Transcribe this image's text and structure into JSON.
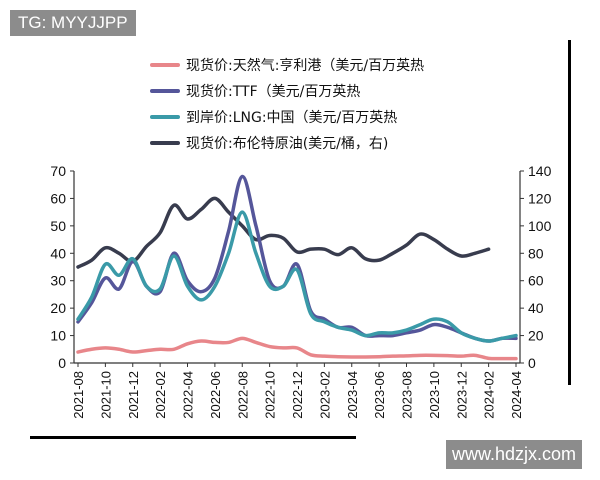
{
  "watermarks": {
    "top_left": "TG: MYYJJPP",
    "bottom_right": "www.hdzjx.com"
  },
  "chart_data": {
    "type": "line",
    "title": "",
    "x": [
      "2021-08",
      "2021-09",
      "2021-10",
      "2021-11",
      "2021-12",
      "2022-01",
      "2022-02",
      "2022-03",
      "2022-04",
      "2022-05",
      "2022-06",
      "2022-07",
      "2022-08",
      "2022-09",
      "2022-10",
      "2022-11",
      "2022-12",
      "2023-01",
      "2023-02",
      "2023-03",
      "2023-04",
      "2023-05",
      "2023-06",
      "2023-07",
      "2023-08",
      "2023-09",
      "2023-10",
      "2023-11",
      "2023-12",
      "2024-01",
      "2024-02",
      "2024-03",
      "2024-04"
    ],
    "x_tick_labels": [
      "2021-08",
      "2021-10",
      "2021-12",
      "2022-02",
      "2022-04",
      "2022-06",
      "2022-08",
      "2022-10",
      "2022-12",
      "2023-02",
      "2023-04",
      "2023-06",
      "2023-08",
      "2023-10",
      "2023-12",
      "2024-02",
      "2024-04"
    ],
    "y_left": {
      "range": [
        0,
        70
      ],
      "ticks": [
        "0",
        "10",
        "20",
        "30",
        "40",
        "50",
        "60",
        "70"
      ]
    },
    "y_right": {
      "range": [
        0,
        140
      ],
      "ticks": [
        "0",
        "20",
        "40",
        "60",
        "80",
        "100",
        "120",
        "140"
      ]
    },
    "grid": false,
    "legend_position": "top",
    "series": [
      {
        "name": "现货价:天然气:亨利港（美元/百万英热",
        "axis": "left",
        "color": "#e8868a",
        "values": [
          4,
          5,
          5.5,
          5,
          4,
          4.5,
          5,
          5,
          7,
          8,
          7.5,
          7.5,
          9,
          7.5,
          6,
          5.5,
          5.5,
          3,
          2.5,
          2.3,
          2.2,
          2.2,
          2.3,
          2.5,
          2.6,
          2.8,
          2.8,
          2.7,
          2.5,
          2.8,
          1.7,
          1.6,
          1.6
        ]
      },
      {
        "name": "现货价:TTF（美元/百万英热",
        "axis": "left",
        "color": "#55569a",
        "values": [
          15,
          22,
          31,
          27,
          37,
          28,
          26,
          40,
          30,
          26,
          31,
          48,
          68,
          50,
          30,
          28,
          36,
          19,
          16,
          13,
          13,
          10,
          10,
          10,
          11,
          12,
          14,
          13,
          11,
          9,
          8,
          9,
          9
        ]
      },
      {
        "name": "到岸价:LNG:中国（美元/百万英热",
        "axis": "left",
        "color": "#3a9aa8",
        "values": [
          16,
          24,
          36,
          32,
          38,
          28,
          27,
          39,
          28,
          23,
          28,
          40,
          55,
          40,
          28,
          28,
          34,
          18,
          15,
          13,
          12,
          10,
          11,
          11,
          12,
          14,
          16,
          15,
          11,
          9,
          8,
          9,
          10
        ]
      },
      {
        "name": "现货价:布伦特原油(美元/桶，右)",
        "axis": "right",
        "color": "#383c4e",
        "values": [
          70,
          75,
          84,
          80,
          74,
          85,
          95,
          115,
          105,
          112,
          120,
          110,
          100,
          90,
          93,
          91,
          81,
          83,
          83,
          79,
          84,
          76,
          75,
          80,
          86,
          94,
          90,
          83,
          78,
          80,
          83,
          null,
          null
        ]
      }
    ]
  }
}
